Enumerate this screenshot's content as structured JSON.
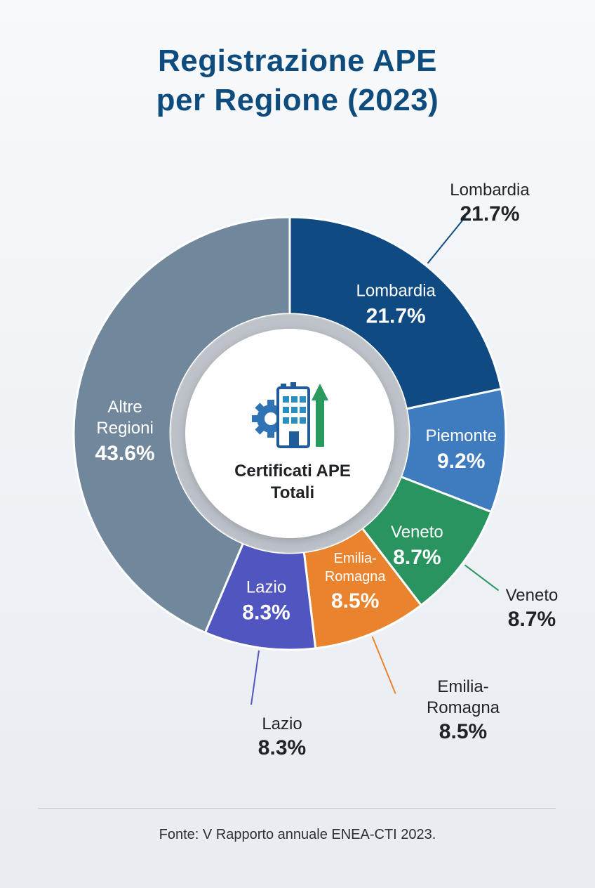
{
  "title": {
    "line1": "Registrazione APE",
    "line2": "per Regione (2023)"
  },
  "center": {
    "line1": "Certificati APE",
    "line2": "Totali",
    "icon": "building-growth-icon"
  },
  "source": "Fonte: V Rapporto annuale ENEA-CTI 2023.",
  "colors": {
    "title": "#0f4c7e",
    "text_dark": "#1f2328"
  },
  "chart_data": {
    "type": "pie",
    "variant": "donut",
    "unit": "%",
    "slices": [
      {
        "label": [
          "Lombardia"
        ],
        "value": 21.7,
        "display": "21.7%",
        "color": "#0f4a82",
        "callout": {
          "text": [
            "Lombardia"
          ],
          "value": "21.7%"
        }
      },
      {
        "label": [
          "Piemonte"
        ],
        "value": 9.2,
        "display": "9.2%",
        "color": "#3f7cbf"
      },
      {
        "label": [
          "Veneto"
        ],
        "value": 8.7,
        "display": "8.7%",
        "color": "#2a9460",
        "callout": {
          "text": [
            "Veneto"
          ],
          "value": "8.7%"
        }
      },
      {
        "label": [
          "Emilia-",
          "Romagna"
        ],
        "value": 8.5,
        "display": "8.5%",
        "color": "#e9832d",
        "callout": {
          "text": [
            "Emilia-",
            "Romagna"
          ],
          "value": "8.5%"
        }
      },
      {
        "label": [
          "Lazio"
        ],
        "value": 8.3,
        "display": "8.3%",
        "color": "#5155c0",
        "callout": {
          "text": [
            "Lazio"
          ],
          "value": "8.3%"
        }
      },
      {
        "label": [
          "Altre",
          "Regioni"
        ],
        "value": 43.6,
        "display": "43.6%",
        "color": "#71879c"
      }
    ]
  }
}
